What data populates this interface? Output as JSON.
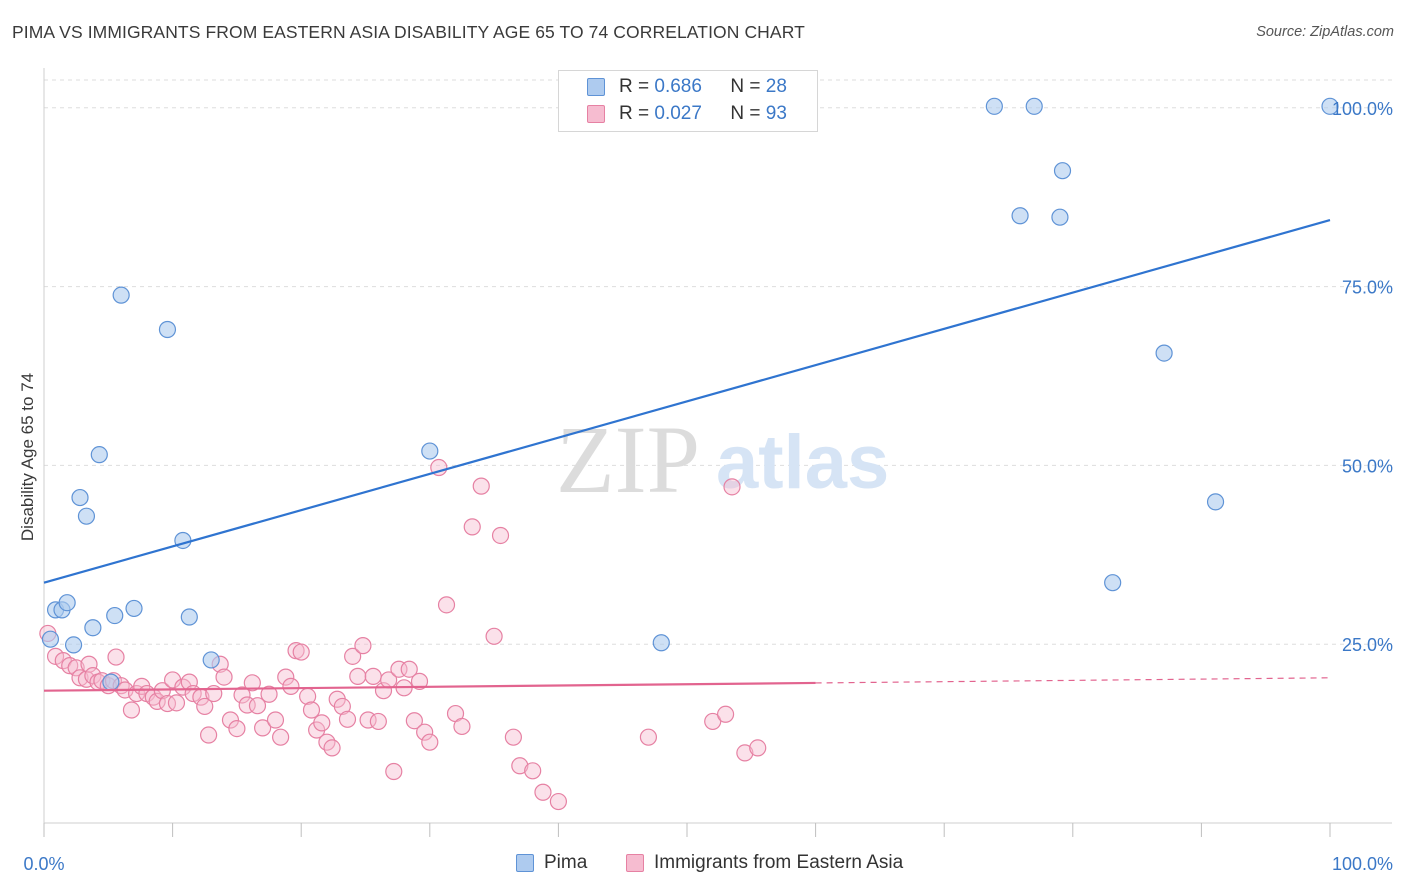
{
  "header": {
    "title": "PIMA VS IMMIGRANTS FROM EASTERN ASIA DISABILITY AGE 65 TO 74 CORRELATION CHART",
    "source": "Source: ZipAtlas.com"
  },
  "watermark": {
    "zip": "ZIP",
    "atlas": "atlas"
  },
  "colors": {
    "pima_fill": "#aecbef",
    "pima_stroke": "#5f93d6",
    "pima_line": "#2f74d0",
    "imm_fill": "#f6bcd0",
    "imm_stroke": "#e681a3",
    "imm_line": "#e2648f",
    "axis_label": "#3b78c7",
    "grid": "#dddddd"
  },
  "legend": {
    "pima": {
      "r_label": "R = ",
      "r_value": "0.686",
      "n_label": "N = ",
      "n_value": "28"
    },
    "imm": {
      "r_label": "R = ",
      "r_value": "0.027",
      "n_label": "N = ",
      "n_value": "93"
    }
  },
  "bottom_legend": {
    "pima": "Pima",
    "imm": "Immigrants from Eastern Asia"
  },
  "chart_data": {
    "type": "scatter",
    "title": "PIMA VS IMMIGRANTS FROM EASTERN ASIA DISABILITY AGE 65 TO 74 CORRELATION CHART",
    "xlabel": "",
    "ylabel": "Disability Age 65 to 74",
    "xlim": [
      0,
      100
    ],
    "ylim": [
      0,
      105
    ],
    "x_tick_labels": [
      "0.0%",
      "100.0%"
    ],
    "y_ticks": [
      25,
      50,
      75,
      100
    ],
    "y_tick_labels": [
      "25.0%",
      "50.0%",
      "75.0%",
      "100.0%"
    ],
    "grid": true,
    "series": [
      {
        "name": "Pima",
        "points": [
          [
            0.5,
            25.7
          ],
          [
            0.9,
            29.8
          ],
          [
            1.4,
            29.8
          ],
          [
            1.8,
            30.8
          ],
          [
            2.3,
            24.9
          ],
          [
            2.8,
            45.5
          ],
          [
            3.3,
            42.9
          ],
          [
            3.8,
            27.3
          ],
          [
            4.3,
            51.5
          ],
          [
            5.2,
            19.7
          ],
          [
            5.5,
            29.0
          ],
          [
            6.0,
            73.8
          ],
          [
            7.0,
            30.0
          ],
          [
            9.6,
            69.0
          ],
          [
            10.8,
            39.5
          ],
          [
            11.3,
            28.8
          ],
          [
            13.0,
            22.8
          ],
          [
            30.0,
            52.0
          ],
          [
            48.0,
            25.2
          ],
          [
            73.9,
            100.2
          ],
          [
            75.9,
            84.9
          ],
          [
            77.0,
            100.2
          ],
          [
            79.2,
            91.2
          ],
          [
            79.0,
            84.7
          ],
          [
            83.1,
            33.6
          ],
          [
            87.1,
            65.7
          ],
          [
            91.1,
            44.9
          ],
          [
            100.0,
            100.2
          ]
        ],
        "trend": {
          "x1": 0,
          "y1": 33.6,
          "x2": 100,
          "y2": 84.3
        }
      },
      {
        "name": "Immigrants from Eastern Asia",
        "points": [
          [
            0.3,
            26.5
          ],
          [
            0.9,
            23.3
          ],
          [
            1.5,
            22.7
          ],
          [
            2.0,
            22.0
          ],
          [
            2.5,
            21.7
          ],
          [
            2.8,
            20.3
          ],
          [
            3.3,
            20.1
          ],
          [
            3.5,
            22.2
          ],
          [
            3.8,
            20.6
          ],
          [
            4.2,
            19.7
          ],
          [
            4.5,
            19.9
          ],
          [
            5.0,
            19.2
          ],
          [
            5.4,
            19.9
          ],
          [
            5.6,
            23.2
          ],
          [
            6.0,
            19.2
          ],
          [
            6.3,
            18.6
          ],
          [
            6.8,
            15.8
          ],
          [
            7.2,
            18.1
          ],
          [
            7.6,
            19.1
          ],
          [
            8.0,
            18.1
          ],
          [
            8.5,
            17.6
          ],
          [
            8.8,
            17.0
          ],
          [
            9.2,
            18.5
          ],
          [
            9.6,
            16.7
          ],
          [
            10.0,
            20.0
          ],
          [
            10.3,
            16.8
          ],
          [
            10.8,
            19.0
          ],
          [
            11.3,
            19.7
          ],
          [
            11.6,
            18.1
          ],
          [
            12.2,
            17.6
          ],
          [
            12.5,
            16.3
          ],
          [
            12.8,
            12.3
          ],
          [
            13.2,
            18.1
          ],
          [
            13.7,
            22.2
          ],
          [
            14.0,
            20.4
          ],
          [
            14.5,
            14.4
          ],
          [
            15.0,
            13.2
          ],
          [
            15.4,
            17.9
          ],
          [
            15.8,
            16.5
          ],
          [
            16.2,
            19.6
          ],
          [
            16.6,
            16.4
          ],
          [
            17.0,
            13.3
          ],
          [
            17.5,
            18.0
          ],
          [
            18.0,
            14.4
          ],
          [
            18.4,
            12.0
          ],
          [
            18.8,
            20.4
          ],
          [
            19.2,
            19.1
          ],
          [
            19.6,
            24.1
          ],
          [
            20.0,
            23.9
          ],
          [
            20.5,
            17.7
          ],
          [
            20.8,
            15.8
          ],
          [
            21.2,
            13.0
          ],
          [
            21.6,
            14.0
          ],
          [
            22.0,
            11.3
          ],
          [
            22.4,
            10.5
          ],
          [
            22.8,
            17.3
          ],
          [
            23.2,
            16.3
          ],
          [
            23.6,
            14.5
          ],
          [
            24.0,
            23.3
          ],
          [
            24.4,
            20.5
          ],
          [
            24.8,
            24.8
          ],
          [
            25.2,
            14.4
          ],
          [
            25.6,
            20.5
          ],
          [
            26.0,
            14.2
          ],
          [
            26.4,
            18.5
          ],
          [
            26.8,
            20.0
          ],
          [
            27.2,
            7.2
          ],
          [
            27.6,
            21.5
          ],
          [
            28.0,
            18.9
          ],
          [
            28.4,
            21.5
          ],
          [
            28.8,
            14.3
          ],
          [
            29.2,
            19.8
          ],
          [
            29.6,
            12.7
          ],
          [
            30.0,
            11.3
          ],
          [
            30.7,
            49.7
          ],
          [
            31.3,
            30.5
          ],
          [
            32.0,
            15.3
          ],
          [
            32.5,
            13.5
          ],
          [
            33.3,
            41.4
          ],
          [
            34.0,
            47.1
          ],
          [
            35.0,
            26.1
          ],
          [
            35.5,
            40.2
          ],
          [
            36.5,
            12.0
          ],
          [
            37.0,
            8.0
          ],
          [
            38.0,
            7.3
          ],
          [
            38.8,
            4.3
          ],
          [
            40.0,
            3.0
          ],
          [
            47.0,
            12.0
          ],
          [
            52.0,
            14.2
          ],
          [
            53.0,
            15.2
          ],
          [
            53.5,
            47.0
          ],
          [
            54.5,
            9.8
          ],
          [
            55.5,
            10.5
          ]
        ],
        "trend": {
          "x1": 0,
          "y1": 18.5,
          "x2": 100,
          "y2": 20.3
        },
        "trend_solid_until_x": 60
      }
    ]
  }
}
